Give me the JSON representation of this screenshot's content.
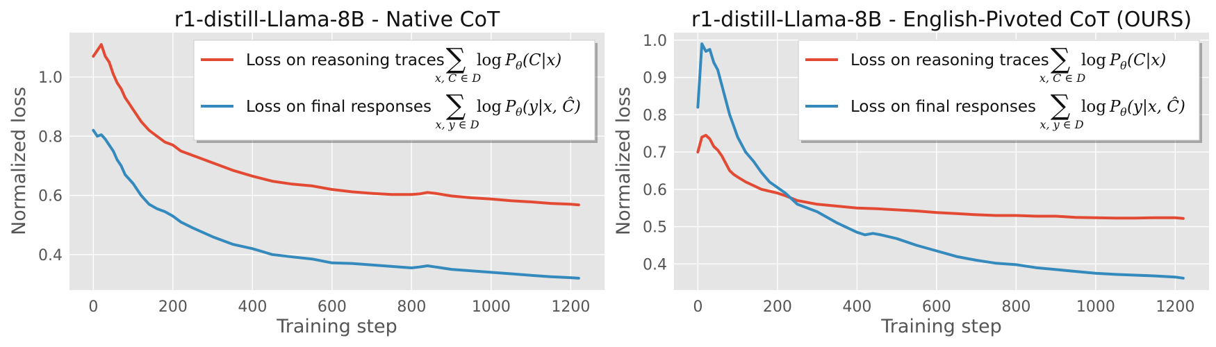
{
  "chart_data": [
    {
      "type": "line",
      "title": "r1-distill-Llama-8B - Native CoT",
      "xlabel": "Training step",
      "ylabel": "Normalized loss",
      "xlim": [
        -60,
        1285
      ],
      "ylim": [
        0.28,
        1.15
      ],
      "xticks": [
        "0",
        "200",
        "400",
        "600",
        "800",
        "1000",
        "1200"
      ],
      "yticks": [
        "0.4",
        "0.6",
        "0.8",
        "1.0"
      ],
      "legend_position": "top-right",
      "series": [
        {
          "name": "Loss on reasoning traces",
          "color": "#E24A33",
          "x": [
            0,
            10,
            20,
            30,
            40,
            50,
            60,
            70,
            80,
            90,
            100,
            120,
            140,
            160,
            180,
            200,
            220,
            250,
            300,
            350,
            400,
            450,
            500,
            550,
            600,
            650,
            700,
            750,
            800,
            820,
            840,
            860,
            900,
            950,
            1000,
            1050,
            1100,
            1150,
            1200,
            1220
          ],
          "values": [
            1.07,
            1.09,
            1.11,
            1.07,
            1.05,
            1.01,
            0.98,
            0.96,
            0.93,
            0.91,
            0.89,
            0.85,
            0.82,
            0.8,
            0.78,
            0.77,
            0.75,
            0.735,
            0.71,
            0.685,
            0.665,
            0.648,
            0.638,
            0.632,
            0.62,
            0.612,
            0.607,
            0.603,
            0.603,
            0.605,
            0.61,
            0.607,
            0.598,
            0.592,
            0.588,
            0.582,
            0.578,
            0.573,
            0.57,
            0.568
          ]
        },
        {
          "name": "Loss on final responses",
          "color": "#348ABD",
          "x": [
            0,
            10,
            20,
            30,
            40,
            50,
            60,
            70,
            80,
            90,
            100,
            120,
            140,
            160,
            180,
            200,
            220,
            250,
            300,
            350,
            400,
            450,
            500,
            550,
            600,
            650,
            700,
            750,
            800,
            820,
            840,
            860,
            900,
            950,
            1000,
            1050,
            1100,
            1150,
            1200,
            1220
          ],
          "values": [
            0.82,
            0.8,
            0.805,
            0.79,
            0.77,
            0.75,
            0.72,
            0.7,
            0.67,
            0.655,
            0.64,
            0.6,
            0.57,
            0.555,
            0.545,
            0.53,
            0.51,
            0.49,
            0.46,
            0.435,
            0.42,
            0.4,
            0.392,
            0.385,
            0.372,
            0.37,
            0.365,
            0.36,
            0.355,
            0.358,
            0.362,
            0.358,
            0.35,
            0.345,
            0.34,
            0.335,
            0.33,
            0.325,
            0.322,
            0.32
          ]
        }
      ]
    },
    {
      "type": "line",
      "title": "r1-distill-Llama-8B - English-Pivoted CoT (OURS)",
      "xlabel": "Training step",
      "ylabel": "Normalized loss",
      "xlim": [
        -60,
        1285
      ],
      "ylim": [
        0.33,
        1.02
      ],
      "xticks": [
        "0",
        "200",
        "400",
        "600",
        "800",
        "1000",
        "1200"
      ],
      "yticks": [
        "0.4",
        "0.5",
        "0.6",
        "0.7",
        "0.8",
        "0.9",
        "1.0"
      ],
      "legend_position": "top-right",
      "series": [
        {
          "name": "Loss on reasoning traces",
          "color": "#E24A33",
          "x": [
            0,
            10,
            20,
            30,
            40,
            50,
            60,
            70,
            80,
            90,
            100,
            120,
            140,
            160,
            180,
            200,
            220,
            250,
            300,
            350,
            400,
            450,
            500,
            550,
            600,
            650,
            700,
            750,
            800,
            850,
            900,
            950,
            1000,
            1050,
            1100,
            1150,
            1200,
            1220
          ],
          "values": [
            0.7,
            0.74,
            0.745,
            0.735,
            0.715,
            0.705,
            0.69,
            0.67,
            0.65,
            0.64,
            0.633,
            0.62,
            0.61,
            0.6,
            0.595,
            0.59,
            0.583,
            0.57,
            0.56,
            0.555,
            0.55,
            0.548,
            0.545,
            0.542,
            0.538,
            0.535,
            0.532,
            0.53,
            0.53,
            0.528,
            0.528,
            0.525,
            0.524,
            0.523,
            0.523,
            0.524,
            0.524,
            0.522
          ]
        },
        {
          "name": "Loss on final responses",
          "color": "#348ABD",
          "x": [
            0,
            10,
            20,
            30,
            40,
            50,
            60,
            70,
            80,
            90,
            100,
            120,
            140,
            160,
            180,
            200,
            220,
            250,
            300,
            350,
            400,
            420,
            440,
            460,
            500,
            550,
            600,
            650,
            700,
            750,
            800,
            850,
            900,
            950,
            1000,
            1050,
            1100,
            1150,
            1200,
            1220
          ],
          "values": [
            0.82,
            0.99,
            0.97,
            0.975,
            0.94,
            0.92,
            0.88,
            0.84,
            0.8,
            0.77,
            0.74,
            0.7,
            0.675,
            0.645,
            0.62,
            0.605,
            0.59,
            0.56,
            0.54,
            0.51,
            0.485,
            0.478,
            0.482,
            0.478,
            0.468,
            0.45,
            0.435,
            0.42,
            0.41,
            0.402,
            0.398,
            0.39,
            0.385,
            0.38,
            0.375,
            0.372,
            0.37,
            0.368,
            0.365,
            0.362
          ]
        }
      ]
    }
  ],
  "legend_math": {
    "trace_sub": "x, C ∈ D",
    "trace_expr": "(C|x)",
    "response_sub": "x, y ∈ D",
    "response_expr": "(y|x, Ĉ)",
    "log": "log",
    "p": "P",
    "theta": "θ",
    "sigma": "∑"
  }
}
